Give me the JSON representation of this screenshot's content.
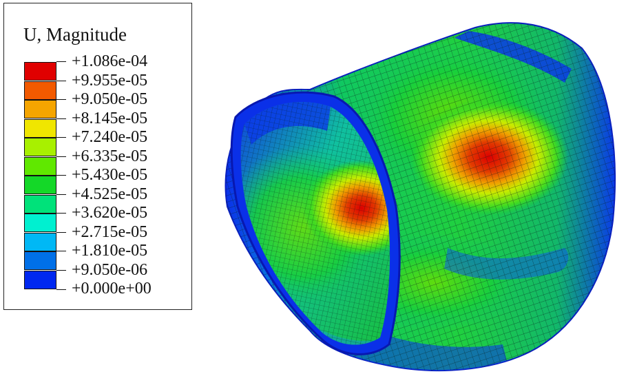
{
  "legend": {
    "title": "U, Magnitude",
    "labels": [
      "+1.086e-04",
      "+9.955e-05",
      "+9.050e-05",
      "+8.145e-05",
      "+7.240e-05",
      "+6.335e-05",
      "+5.430e-05",
      "+4.525e-05",
      "+3.620e-05",
      "+2.715e-05",
      "+1.810e-05",
      "+9.050e-06",
      "+0.000e+00"
    ],
    "colors": [
      "#e00000",
      "#f25a00",
      "#f5a500",
      "#f0e600",
      "#a8f000",
      "#60e800",
      "#14d828",
      "#00e27a",
      "#00f0d0",
      "#00b8f5",
      "#0070e8",
      "#0028f0"
    ]
  },
  "mesh_colors": {
    "low": "#0a2ef0",
    "mid": "#1ccf3a",
    "high": "#e40000"
  }
}
